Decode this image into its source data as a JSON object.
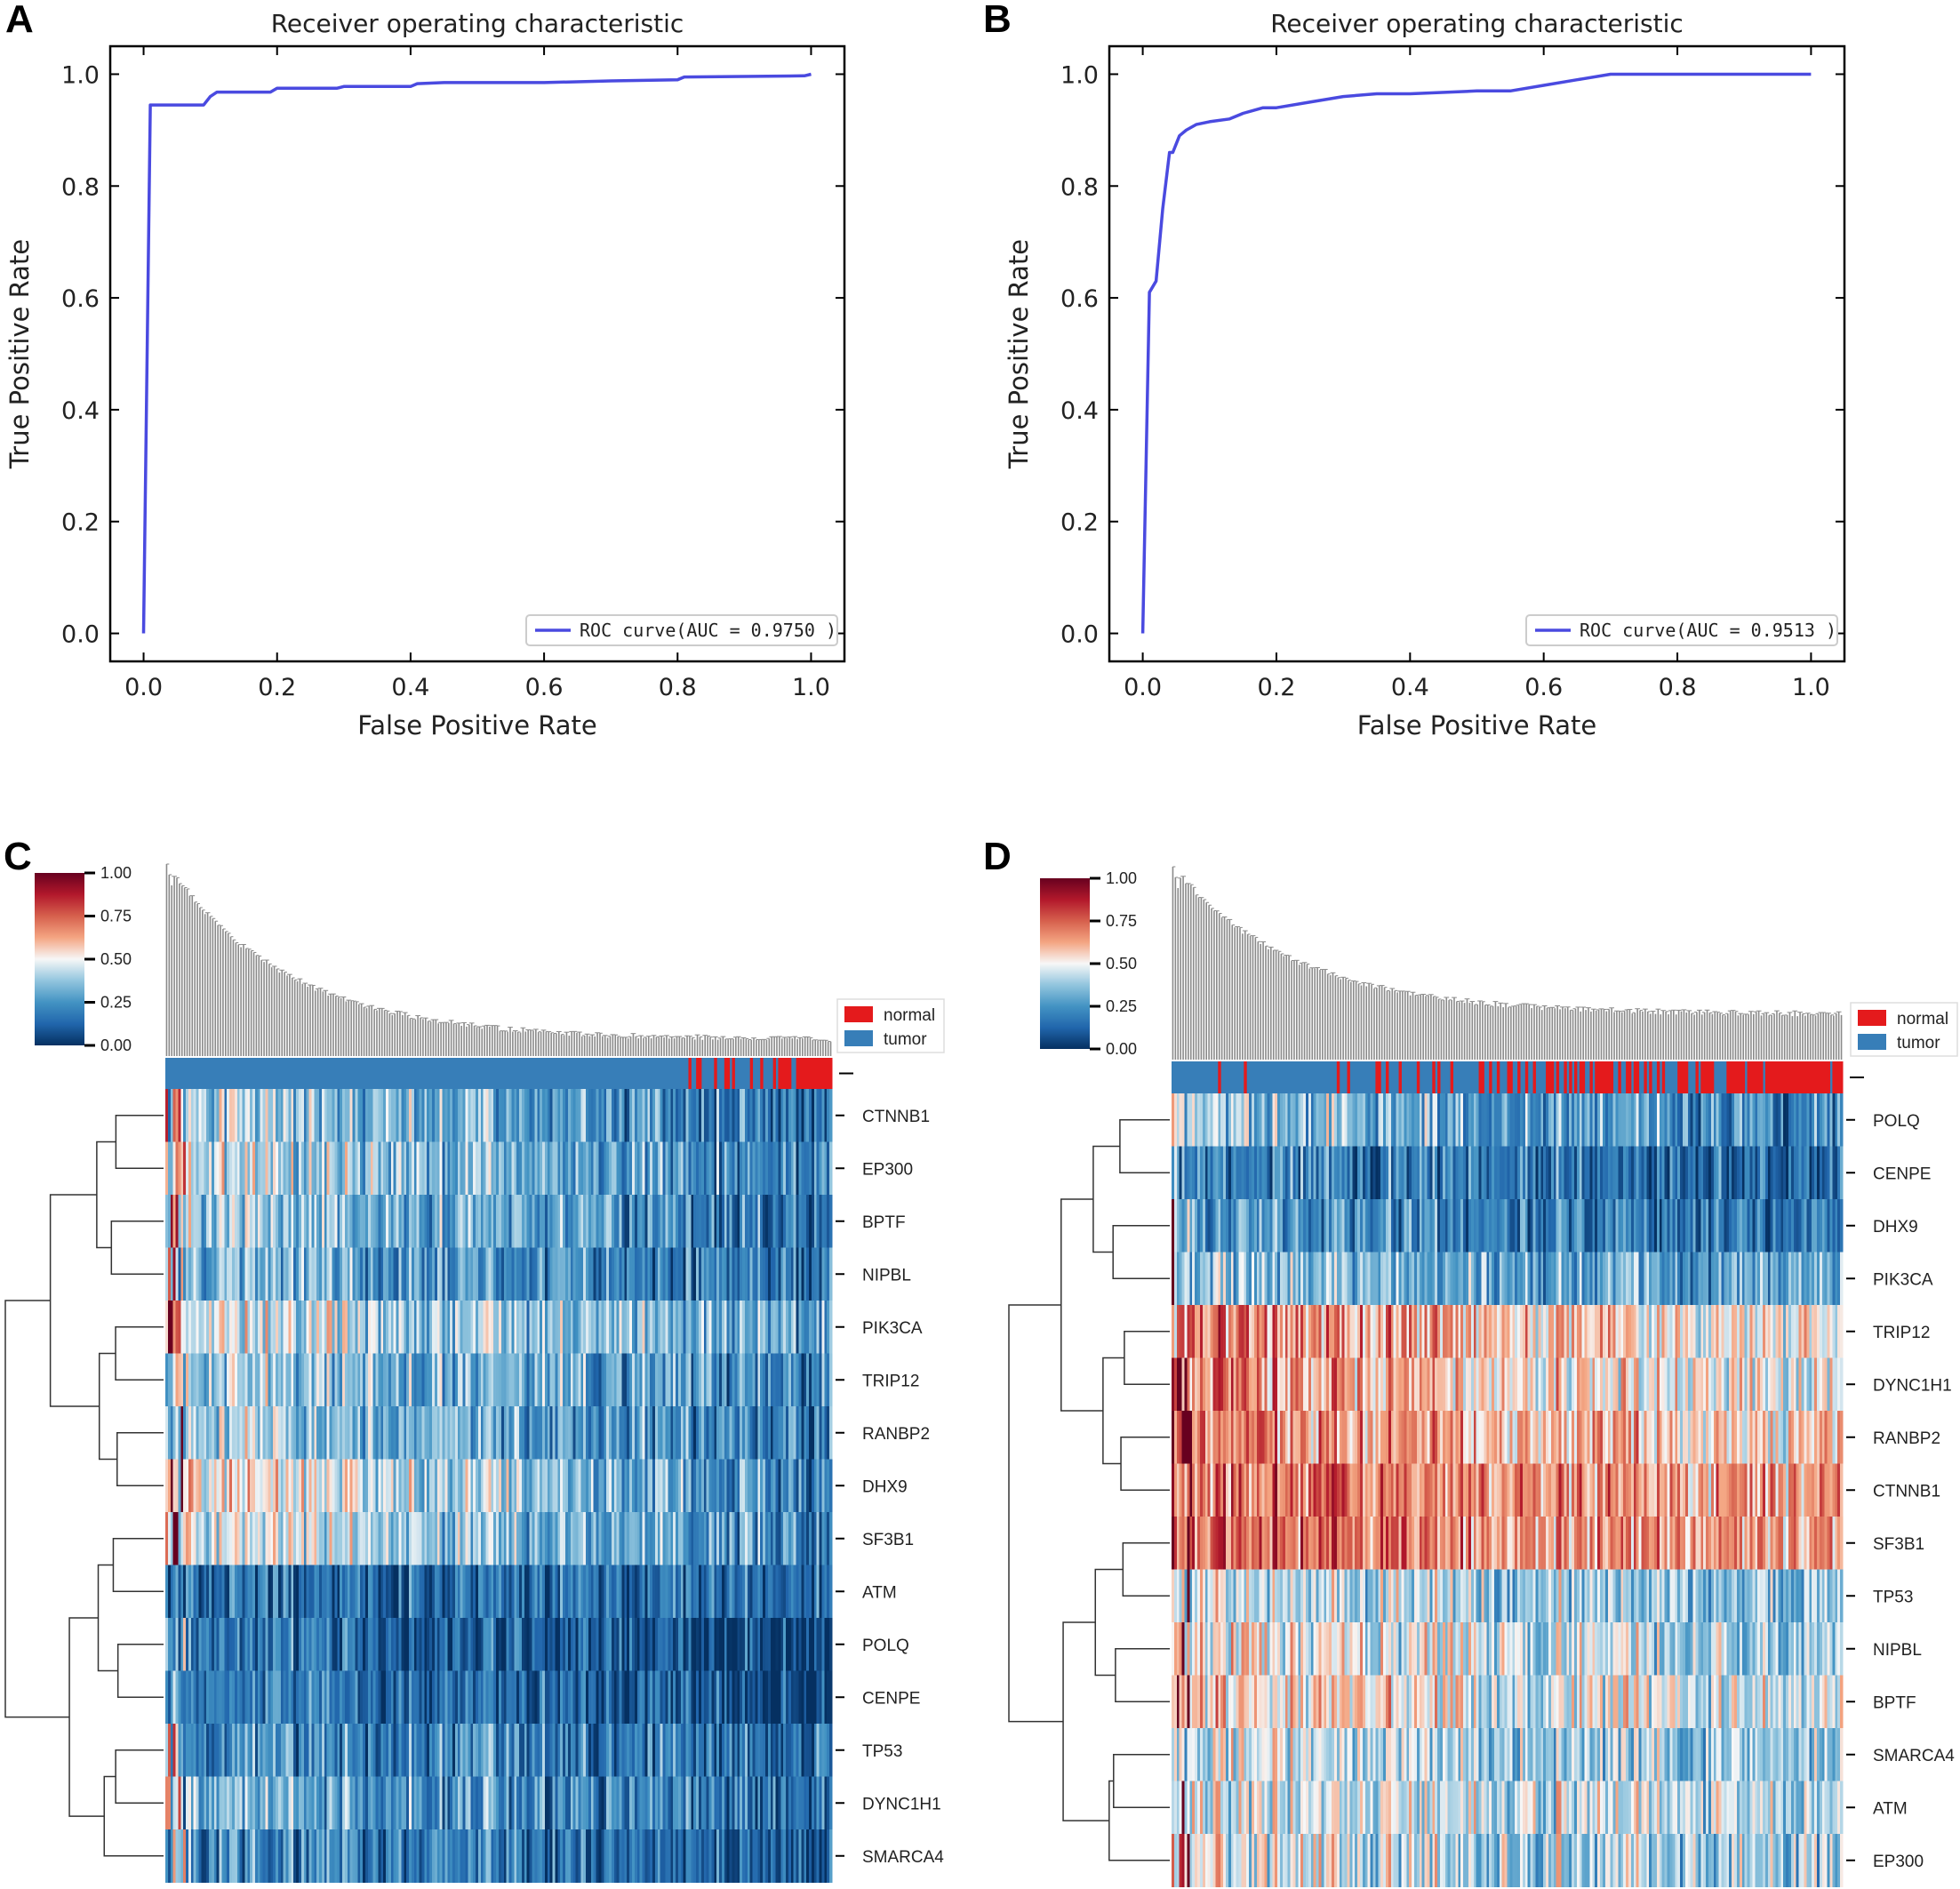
{
  "panels": {
    "A": {
      "letter": "A"
    },
    "B": {
      "letter": "B"
    },
    "C": {
      "letter": "C"
    },
    "D": {
      "letter": "D"
    }
  },
  "chart_data": [
    {
      "id": "A",
      "type": "line",
      "title": "Receiver operating characteristic",
      "xlabel": "False Positive Rate",
      "ylabel": "True Positive Rate",
      "xlim": [
        -0.05,
        1.05
      ],
      "ylim": [
        -0.05,
        1.05
      ],
      "xticks": [
        "0.0",
        "0.2",
        "0.4",
        "0.6",
        "0.8",
        "1.0"
      ],
      "yticks": [
        "0.0",
        "0.2",
        "0.4",
        "0.6",
        "0.8",
        "1.0"
      ],
      "legend": "ROC curve(AUC = 0.9750 )",
      "legend_position": "lower-right",
      "color": "#4a4ae0",
      "series": [
        {
          "name": "ROC curve",
          "x": [
            0.0,
            0.01,
            0.01,
            0.09,
            0.1,
            0.11,
            0.19,
            0.2,
            0.29,
            0.3,
            0.4,
            0.41,
            0.45,
            0.6,
            0.7,
            0.8,
            0.81,
            0.99,
            1.0
          ],
          "y": [
            0.0,
            0.945,
            0.945,
            0.945,
            0.96,
            0.968,
            0.968,
            0.975,
            0.975,
            0.978,
            0.978,
            0.983,
            0.985,
            0.985,
            0.988,
            0.99,
            0.995,
            0.997,
            1.0
          ]
        }
      ]
    },
    {
      "id": "B",
      "type": "line",
      "title": "Receiver operating characteristic",
      "xlabel": "False Positive Rate",
      "ylabel": "True Positive Rate",
      "xlim": [
        -0.05,
        1.05
      ],
      "ylim": [
        -0.05,
        1.05
      ],
      "xticks": [
        "0.0",
        "0.2",
        "0.4",
        "0.6",
        "0.8",
        "1.0"
      ],
      "yticks": [
        "0.0",
        "0.2",
        "0.4",
        "0.6",
        "0.8",
        "1.0"
      ],
      "legend": "ROC curve(AUC = 0.9513 )",
      "legend_position": "lower-right",
      "color": "#4a4ae0",
      "series": [
        {
          "name": "ROC curve",
          "x": [
            0.0,
            0.01,
            0.01,
            0.02,
            0.03,
            0.03,
            0.04,
            0.045,
            0.055,
            0.065,
            0.08,
            0.1,
            0.13,
            0.15,
            0.18,
            0.2,
            0.25,
            0.3,
            0.35,
            0.4,
            0.5,
            0.55,
            0.6,
            0.65,
            0.7,
            0.8,
            1.0
          ],
          "y": [
            0.0,
            0.61,
            0.61,
            0.63,
            0.76,
            0.76,
            0.86,
            0.86,
            0.89,
            0.9,
            0.91,
            0.915,
            0.92,
            0.93,
            0.94,
            0.94,
            0.95,
            0.96,
            0.965,
            0.965,
            0.97,
            0.97,
            0.98,
            0.99,
            1.0,
            1.0,
            1.0
          ]
        }
      ]
    },
    {
      "id": "C",
      "type": "heatmap",
      "colorbar": {
        "ticks": [
          "1.00",
          "0.75",
          "0.50",
          "0.25",
          "0.00"
        ]
      },
      "legend": {
        "normal": "normal",
        "tumor": "tumor",
        "normal_color": "#e41a1c",
        "tumor_color": "#377eb8"
      },
      "rows": [
        "CTNNB1",
        "EP300",
        "BPTF",
        "NIPBL",
        "PIK3CA",
        "TRIP12",
        "RANBP2",
        "DHX9",
        "SF3B1",
        "ATM",
        "POLQ",
        "CENPE",
        "TP53",
        "DYNC1H1",
        "SMARCA4"
      ],
      "row_mean": [
        0.3,
        0.33,
        0.3,
        0.25,
        0.38,
        0.32,
        0.3,
        0.4,
        0.36,
        0.15,
        0.12,
        0.12,
        0.2,
        0.25,
        0.18
      ],
      "row_trend": [
        0.14,
        0.14,
        0.14,
        0.08,
        0.12,
        0.12,
        0.12,
        0.2,
        0.15,
        0.03,
        0.08,
        0.08,
        0.06,
        0.1,
        0.07
      ],
      "normal_fraction_by_position": "normal samples concentrated in the right end of the column order"
    },
    {
      "id": "D",
      "type": "heatmap",
      "colorbar": {
        "ticks": [
          "1.00",
          "0.75",
          "0.50",
          "0.25",
          "0.00"
        ]
      },
      "legend": {
        "normal": "normal",
        "tumor": "tumor",
        "normal_color": "#e41a1c",
        "tumor_color": "#377eb8"
      },
      "rows": [
        "POLQ",
        "CENPE",
        "DHX9",
        "PIK3CA",
        "TRIP12",
        "DYNC1H1",
        "RANBP2",
        "CTNNB1",
        "SF3B1",
        "TP53",
        "NIPBL",
        "BPTF",
        "SMARCA4",
        "ATM",
        "EP300"
      ],
      "row_mean": [
        0.3,
        0.18,
        0.22,
        0.32,
        0.6,
        0.58,
        0.62,
        0.68,
        0.68,
        0.4,
        0.45,
        0.5,
        0.4,
        0.45,
        0.42
      ],
      "row_trend": [
        0.1,
        0.06,
        0.06,
        0.05,
        0.12,
        0.12,
        0.08,
        0.06,
        0.06,
        0.06,
        0.08,
        0.08,
        0.06,
        0.05,
        0.06
      ],
      "normal_fraction_by_position": "normal samples increasingly frequent toward the right end"
    }
  ]
}
